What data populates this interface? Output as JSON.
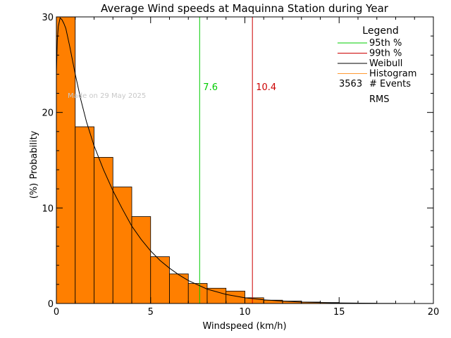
{
  "chart_data": {
    "type": "bar",
    "title": "Average Wind speeds at Maquinna Station during Year",
    "xlabel": "Windspeed (km/h)",
    "ylabel": "Probability",
    "ylabel_unit": "(%)",
    "xlim": [
      0,
      20
    ],
    "ylim": [
      0,
      30
    ],
    "xticks": [
      0,
      5,
      10,
      15,
      20
    ],
    "yticks": [
      0,
      10,
      20,
      30
    ],
    "grid": false,
    "legend_position": "top-right",
    "watermark": "Made on 29 May 2025",
    "histogram": {
      "name": "Histogram",
      "color": "#ff7f00",
      "bin_width": 1,
      "bin_starts": [
        0,
        1,
        2,
        3,
        4,
        5,
        6,
        7,
        8,
        9,
        10,
        11,
        12,
        13,
        14,
        15,
        16,
        17
      ],
      "values": [
        30.0,
        18.5,
        15.3,
        12.2,
        9.1,
        4.9,
        3.1,
        2.1,
        1.6,
        1.3,
        0.6,
        0.35,
        0.25,
        0.15,
        0.1,
        0.05,
        0.03,
        0.02
      ]
    },
    "weibull": {
      "name": "Weibull",
      "color": "#000000",
      "x": [
        0.0,
        0.05,
        0.1,
        0.2,
        0.3,
        0.4,
        0.5,
        0.7,
        1.0,
        1.3,
        1.6,
        2.0,
        2.5,
        3.0,
        3.5,
        4.0,
        4.5,
        5.0,
        5.5,
        6.0,
        6.5,
        7.0,
        8.0,
        9.0,
        10.0,
        11.0,
        12.0,
        13.0,
        14.0,
        15.0,
        16.0,
        17.0
      ],
      "y": [
        24.0,
        27.5,
        29.0,
        29.9,
        29.7,
        29.3,
        28.8,
        27.0,
        24.0,
        21.3,
        19.0,
        16.5,
        14.0,
        11.8,
        9.9,
        8.1,
        6.7,
        5.5,
        4.5,
        3.7,
        3.0,
        2.4,
        1.5,
        0.95,
        0.6,
        0.38,
        0.25,
        0.15,
        0.1,
        0.06,
        0.04,
        0.02
      ]
    },
    "percentile_lines": [
      {
        "name": "95th %",
        "x": 7.6,
        "label": "7.6",
        "color": "#00cc00"
      },
      {
        "name": "99th %",
        "x": 10.4,
        "label": "10.4",
        "color": "#cc0000"
      }
    ],
    "legend": {
      "title": "Legend",
      "entries": [
        {
          "label": "95th %",
          "color": "#00cc00"
        },
        {
          "label": "99th %",
          "color": "#cc0000"
        },
        {
          "label": "Weibull",
          "color": "#000000"
        },
        {
          "label": "Histogram",
          "color": "#ff9933"
        }
      ],
      "events_count": "3563",
      "events_label": "# Events",
      "rms_label": "RMS"
    }
  }
}
